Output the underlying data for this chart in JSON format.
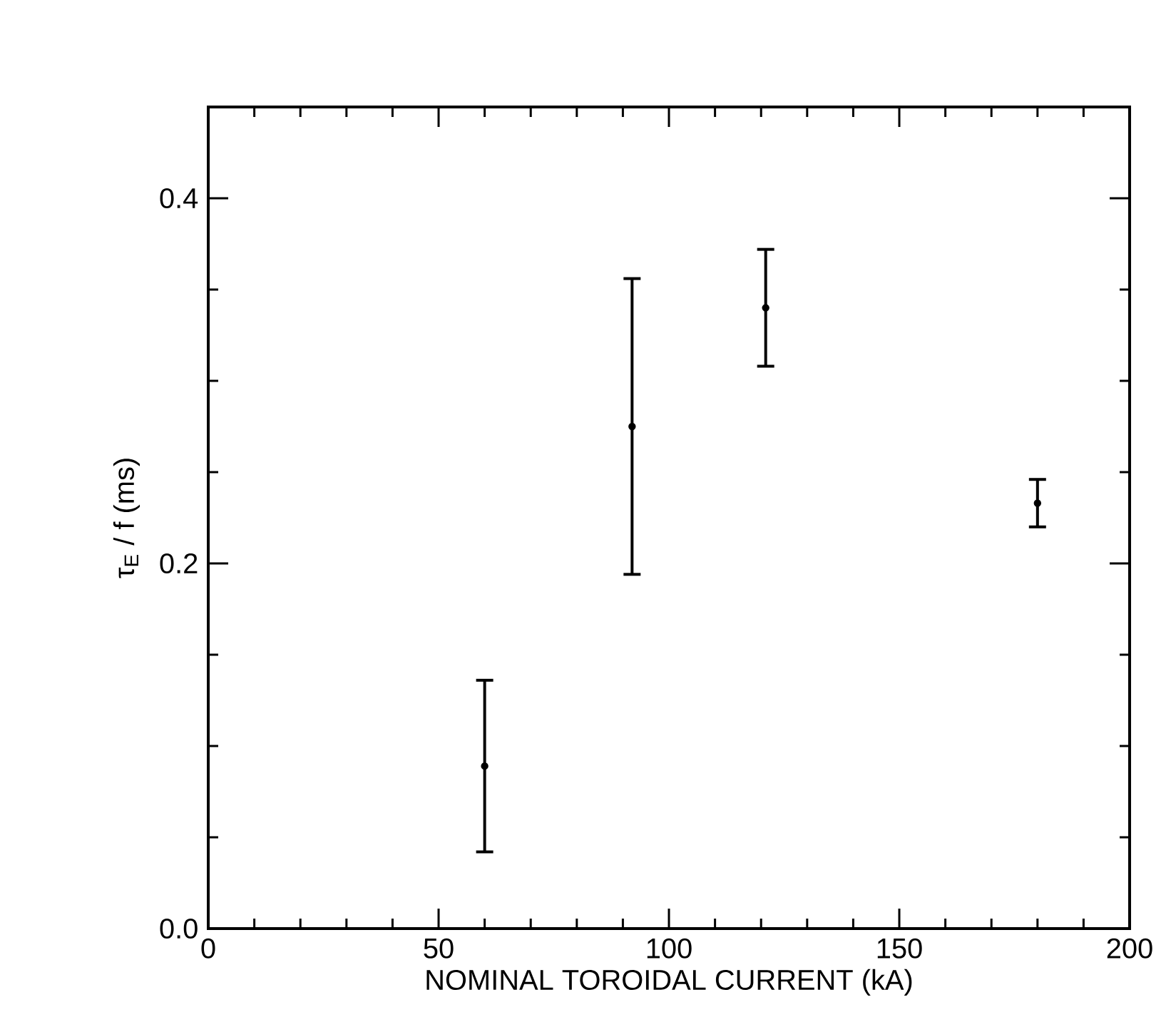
{
  "chart_data": {
    "type": "scatter",
    "xlabel": "NOMINAL TOROIDAL CURRENT (kA)",
    "ylabel": "τ$_{E}$ / f (ms)",
    "x": [
      60,
      92,
      121,
      180
    ],
    "values": [
      0.089,
      0.275,
      0.34,
      0.233
    ],
    "errors": [
      0.047,
      0.081,
      0.032,
      0.013
    ],
    "color": "#000000",
    "marker": "circle",
    "xlim": [
      0,
      200
    ],
    "xticks": [
      0,
      50,
      100,
      150,
      200
    ],
    "ylim": [
      0,
      0.45
    ],
    "yticks": [
      {
        "value": 0,
        "label": "0.0"
      },
      0.2,
      0.4
    ],
    "grid": false
  }
}
